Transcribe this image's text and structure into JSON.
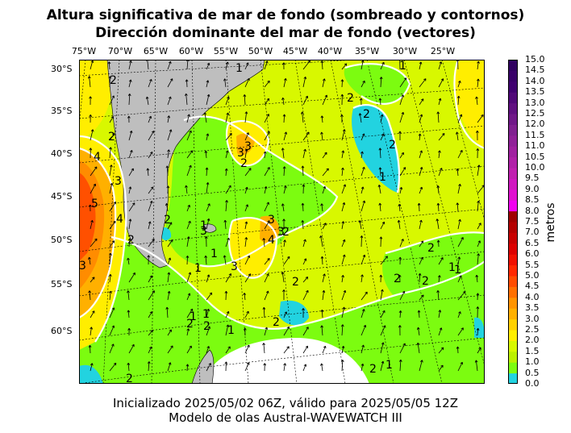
{
  "title": {
    "line1": "Altura significativa de mar de fondo (sombreado y contornos)",
    "line2": "Dirección dominante del mar de fondo (vectores)"
  },
  "longitude_ticks": [
    "75°W",
    "70°W",
    "65°W",
    "60°W",
    "55°W",
    "50°W",
    "45°W",
    "40°W",
    "35°W",
    "30°W",
    "25°W"
  ],
  "latitude_ticks": [
    "30°S",
    "35°S",
    "40°S",
    "45°S",
    "50°S",
    "55°S",
    "60°S"
  ],
  "colorbar": {
    "label": "metros",
    "ticks": [
      "0.0",
      "0.5",
      "1.0",
      "1.5",
      "2.0",
      "2.5",
      "3.0",
      "3.5",
      "4.0",
      "4.5",
      "5.0",
      "5.5",
      "6.0",
      "6.5",
      "7.0",
      "7.5",
      "8.0",
      "8.5",
      "9.0",
      "9.5",
      "10.0",
      "10.5",
      "11.0",
      "11.5",
      "12.0",
      "12.5",
      "13.0",
      "13.5",
      "14.0",
      "14.5",
      "15.0"
    ],
    "colors": [
      "#22d3e0",
      "#7cfc10",
      "#bcf000",
      "#d8f800",
      "#ffee00",
      "#ffd000",
      "#ffb000",
      "#ff9400",
      "#ff7000",
      "#ff4c00",
      "#ff2800",
      "#f01000",
      "#dc0000",
      "#c80000",
      "#b40000",
      "#a00000",
      "#f000f0",
      "#e010d0",
      "#d018c0",
      "#c020b0",
      "#b020a8",
      "#a020a0",
      "#902098",
      "#802090",
      "#701888",
      "#601080",
      "#500878",
      "#400070",
      "#380068",
      "#300060"
    ]
  },
  "contour_labels": [
    "1",
    "2",
    "2",
    "2",
    "4",
    "2",
    "3",
    "5",
    "4",
    "2",
    "3",
    "1",
    "1",
    "2",
    "3",
    "3",
    "2",
    "3",
    "4",
    "3",
    "2",
    "3",
    "1",
    "1",
    "3",
    "2",
    "2",
    "2",
    "1",
    "1",
    "2",
    "2",
    "2",
    "1",
    "1",
    "2",
    "2",
    "1",
    "1",
    "2",
    "1",
    "2"
  ],
  "footer": {
    "line1": "Inicializado 2025/05/02 06Z, válido para 2025/05/05 12Z",
    "line2": "Modelo de olas Austral-WAVEWATCH III"
  },
  "colors": {
    "land": "#bebebe",
    "ice": "#ffffff",
    "contour": "#ffffff",
    "grid": "#000000",
    "land_grid": "#1a1a8c"
  }
}
